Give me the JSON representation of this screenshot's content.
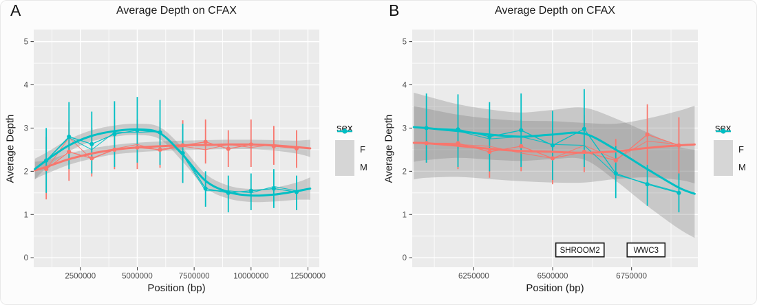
{
  "legend": {
    "title": "sex",
    "entries": [
      {
        "label": "F",
        "color": "#F8766D"
      },
      {
        "label": "M",
        "color": "#00BFC4"
      }
    ]
  },
  "colors": {
    "panel_bg": "#EBEBEB",
    "grid": "#FFFFFF",
    "ribbon": "#808080",
    "ribbon_opacity": 0.32,
    "tick_label": "#4D4D4D",
    "tick_mark": "#333333",
    "gene_box_border": "#1A1A1A",
    "gene_box_fill": "#FFFFFF"
  },
  "chart_data": [
    {
      "type": "line",
      "panel_label": "A",
      "title": "Average Depth on CFAX",
      "xlabel": "Position (bp)",
      "ylabel": "Average Depth",
      "xlim": [
        450000,
        13000000
      ],
      "ylim": [
        -0.22,
        5.28
      ],
      "x_ticks": {
        "values": [
          2500000,
          5000000,
          7500000,
          10000000,
          12500000
        ],
        "labels": [
          "2500000",
          "5000000",
          "7500000",
          "10000000",
          "12500000"
        ]
      },
      "x_minor": [
        1250000,
        3750000,
        6250000,
        8750000,
        11250000
      ],
      "y_ticks": {
        "values": [
          0,
          1,
          2,
          3,
          4,
          5
        ],
        "labels": [
          "0",
          "1",
          "2",
          "3",
          "4",
          "5"
        ]
      },
      "y_minor": [
        0.5,
        1.5,
        2.5,
        3.5,
        4.5
      ],
      "series": [
        {
          "name": "F",
          "color": "#F8766D",
          "x": [
            1000000,
            2000000,
            3000000,
            4000000,
            5000000,
            6000000,
            7000000,
            8000000,
            9000000,
            10000000,
            11000000,
            12000000
          ],
          "mean": [
            2.05,
            2.45,
            2.3,
            2.5,
            2.55,
            2.5,
            2.6,
            2.68,
            2.52,
            2.62,
            2.58,
            2.53
          ],
          "err_lo": [
            1.35,
            1.78,
            1.88,
            2.05,
            2.05,
            2.08,
            1.75,
            2.18,
            2.1,
            2.1,
            2.15,
            2.08
          ],
          "err_hi": [
            2.8,
            3.15,
            3.0,
            3.2,
            3.2,
            3.15,
            3.18,
            3.2,
            2.95,
            3.2,
            3.05,
            2.95
          ],
          "line2": [
            2.05,
            2.78,
            2.28,
            2.52,
            2.62,
            2.48,
            2.58,
            2.5,
            2.62,
            2.55,
            2.62,
            2.53
          ],
          "smooth": {
            "x": [
              500000,
              1000000,
              2000000,
              3000000,
              4000000,
              5000000,
              6000000,
              7000000,
              8000000,
              9000000,
              10000000,
              11000000,
              12000000,
              12600000
            ],
            "y": [
              2.02,
              2.1,
              2.28,
              2.41,
              2.5,
              2.55,
              2.58,
              2.6,
              2.61,
              2.62,
              2.62,
              2.6,
              2.56,
              2.53
            ],
            "ci_half": [
              0.2,
              0.16,
              0.13,
              0.12,
              0.11,
              0.11,
              0.11,
              0.11,
              0.11,
              0.11,
              0.11,
              0.12,
              0.15,
              0.2
            ]
          }
        },
        {
          "name": "M",
          "color": "#00BFC4",
          "x": [
            1000000,
            2000000,
            3000000,
            4000000,
            5000000,
            6000000,
            7000000,
            8000000,
            9000000,
            10000000,
            11000000,
            12000000
          ],
          "mean": [
            2.25,
            2.8,
            2.63,
            2.86,
            2.95,
            2.9,
            2.42,
            1.6,
            1.5,
            1.55,
            1.6,
            1.52
          ],
          "err_lo": [
            1.5,
            2.05,
            1.95,
            2.1,
            2.2,
            2.15,
            1.73,
            1.18,
            1.05,
            1.1,
            1.15,
            1.1
          ],
          "err_hi": [
            3.0,
            3.6,
            3.38,
            3.62,
            3.72,
            3.65,
            3.1,
            2.0,
            1.9,
            1.95,
            2.05,
            1.9
          ],
          "line2": [
            2.25,
            2.78,
            2.5,
            2.9,
            2.9,
            2.92,
            2.38,
            1.55,
            1.55,
            1.5,
            1.65,
            1.55
          ],
          "smooth": {
            "x": [
              500000,
              1000000,
              2000000,
              3000000,
              4000000,
              5000000,
              6000000,
              7000000,
              8000000,
              9000000,
              10000000,
              11000000,
              12000000,
              12600000
            ],
            "y": [
              2.05,
              2.25,
              2.6,
              2.82,
              2.93,
              2.97,
              2.88,
              2.38,
              1.78,
              1.52,
              1.44,
              1.46,
              1.54,
              1.6
            ],
            "ci_half": [
              0.24,
              0.18,
              0.14,
              0.13,
              0.13,
              0.13,
              0.14,
              0.16,
              0.16,
              0.15,
              0.15,
              0.16,
              0.2,
              0.26
            ]
          }
        }
      ],
      "genes": []
    },
    {
      "type": "line",
      "panel_label": "B",
      "title": "Average Depth on CFAX",
      "xlabel": "Position (bp)",
      "ylabel": "Average Depth",
      "xlim": [
        6055000,
        6960000
      ],
      "ylim": [
        -0.22,
        5.28
      ],
      "x_ticks": {
        "values": [
          6250000,
          6500000,
          6750000
        ],
        "labels": [
          "6250000",
          "6500000",
          "6750000"
        ]
      },
      "x_minor": [
        6125000,
        6375000,
        6625000,
        6875000
      ],
      "y_ticks": {
        "values": [
          0,
          1,
          2,
          3,
          4,
          5
        ],
        "labels": [
          "0",
          "1",
          "2",
          "3",
          "4",
          "5"
        ]
      },
      "y_minor": [
        0.5,
        1.5,
        2.5,
        3.5,
        4.5
      ],
      "series": [
        {
          "name": "F",
          "color": "#F8766D",
          "x": [
            6100000,
            6200000,
            6300000,
            6400000,
            6500000,
            6600000,
            6700000,
            6800000,
            6900000
          ],
          "mean": [
            2.65,
            2.65,
            2.45,
            2.58,
            2.3,
            2.45,
            2.25,
            2.85,
            2.6
          ],
          "err_lo": [
            2.2,
            2.05,
            1.85,
            2.0,
            1.7,
            1.98,
            1.75,
            2.15,
            1.9
          ],
          "err_hi": [
            3.1,
            3.22,
            3.0,
            3.2,
            2.9,
            3.3,
            2.75,
            3.55,
            3.25
          ],
          "line2": [
            2.65,
            2.62,
            2.58,
            2.42,
            2.3,
            2.6,
            2.28,
            2.7,
            2.62
          ],
          "smooth": {
            "x": [
              6060000,
              6100000,
              6200000,
              6300000,
              6400000,
              6500000,
              6600000,
              6700000,
              6800000,
              6900000,
              6950000
            ],
            "y": [
              2.66,
              2.65,
              2.59,
              2.52,
              2.47,
              2.45,
              2.43,
              2.46,
              2.54,
              2.6,
              2.62
            ],
            "ci_half": [
              0.85,
              0.8,
              0.72,
              0.7,
              0.7,
              0.71,
              0.69,
              0.64,
              0.68,
              0.8,
              0.9
            ]
          }
        },
        {
          "name": "M",
          "color": "#00BFC4",
          "x": [
            6100000,
            6200000,
            6300000,
            6400000,
            6500000,
            6600000,
            6700000,
            6800000,
            6900000
          ],
          "mean": [
            3.0,
            2.97,
            2.8,
            2.95,
            2.6,
            2.98,
            1.95,
            1.7,
            1.5
          ],
          "err_lo": [
            2.2,
            2.1,
            2.0,
            2.1,
            1.8,
            2.1,
            1.38,
            1.2,
            1.05
          ],
          "err_hi": [
            3.8,
            3.78,
            3.6,
            3.8,
            3.4,
            3.9,
            2.58,
            2.15,
            1.95
          ],
          "line2": [
            3.0,
            2.93,
            2.75,
            2.8,
            2.62,
            2.6,
            1.92,
            1.72,
            1.52
          ],
          "smooth": {
            "x": [
              6060000,
              6100000,
              6200000,
              6300000,
              6400000,
              6500000,
              6600000,
              6700000,
              6800000,
              6900000,
              6950000
            ],
            "y": [
              3.02,
              3.0,
              2.93,
              2.85,
              2.8,
              2.85,
              2.87,
              2.5,
              2.05,
              1.62,
              1.48
            ],
            "ci_half": [
              0.8,
              0.74,
              0.62,
              0.58,
              0.56,
              0.57,
              0.6,
              0.72,
              0.85,
              0.95,
              1.02
            ]
          }
        }
      ],
      "genes": [
        {
          "label": "SHROOM2",
          "x_start": 6510000,
          "x_end": 6663000,
          "y_bottom": 0.02,
          "y_top": 0.34
        },
        {
          "label": "WWC3",
          "x_start": 6736000,
          "x_end": 6856000,
          "y_bottom": 0.02,
          "y_top": 0.34
        }
      ]
    }
  ]
}
